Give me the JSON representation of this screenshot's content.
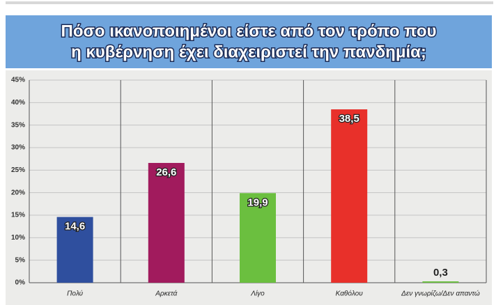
{
  "chart_data": {
    "type": "bar",
    "title": [
      "Πόσο ικανοποιημένοι είστε από τον τρόπο που",
      "η κυβέρνηση έχει διαχειριστεί την πανδημία;"
    ],
    "categories": [
      "Πολύ",
      "Αρκετά",
      "Λίγο",
      "Καθόλου",
      "Δεν γνωρίζω/Δεν απαντώ"
    ],
    "values": [
      14.6,
      26.6,
      19.9,
      38.5,
      0.3
    ],
    "value_labels": [
      "14,6",
      "26,6",
      "19,9",
      "38,5",
      "0,3"
    ],
    "colors": [
      "#2f4f9e",
      "#a11b5d",
      "#6bbf3f",
      "#e8302a",
      "#6bbf3f"
    ],
    "ylim": [
      0,
      45
    ],
    "yticks": [
      {
        "value": 0,
        "label": "0%"
      },
      {
        "value": 5,
        "label": "5%"
      },
      {
        "value": 10,
        "label": "10%"
      },
      {
        "value": 15,
        "label": "15%"
      },
      {
        "value": 20,
        "label": "20%"
      },
      {
        "value": 25,
        "label": "25%"
      },
      {
        "value": 30,
        "label": "30%"
      },
      {
        "value": 35,
        "label": "35%"
      },
      {
        "value": 40,
        "label": "40%"
      },
      {
        "value": 45,
        "label": "45%"
      }
    ],
    "grid": true
  }
}
